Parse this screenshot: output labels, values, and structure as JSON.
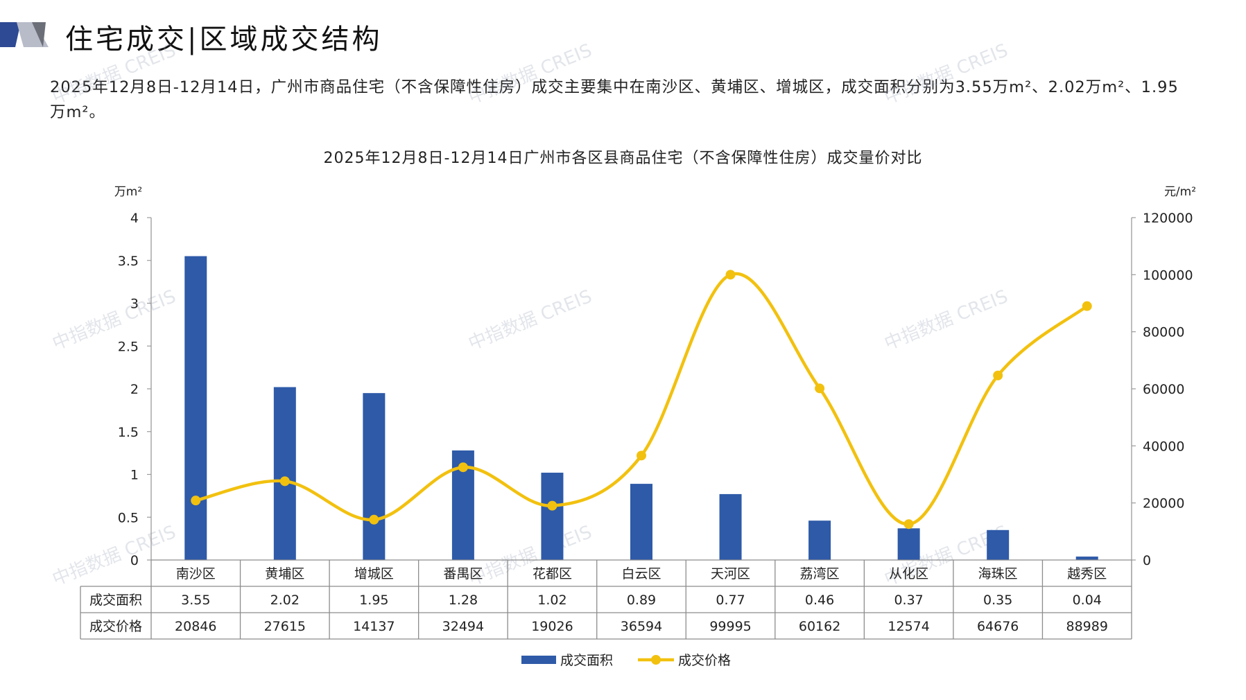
{
  "page": {
    "title": "住宅成交|区域成交结构",
    "summary": "2025年12月8日-12月14日，广州市商品住宅（不含保障性住房）成交主要集中在南沙区、黄埔区、增城区，成交面积分别为3.55万m²、2.02万m²、1.95万m²。",
    "watermark": "中指数据 CREIS"
  },
  "chart_data": {
    "type": "bar",
    "title": "2025年12月8日-12月14日广州市各区县商品住宅（不含保障性住房）成交量价对比",
    "y_left_unit": "万m²",
    "y_right_unit": "元/m²",
    "y_left_lim": [
      0,
      4
    ],
    "y_left_ticks": [
      "0",
      "0.5",
      "1",
      "1.5",
      "2",
      "2.5",
      "3",
      "3.5",
      "4"
    ],
    "y_right_lim": [
      0,
      120000
    ],
    "y_right_ticks": [
      "0",
      "20000",
      "40000",
      "60000",
      "80000",
      "100000",
      "120000"
    ],
    "categories": [
      "南沙区",
      "黄埔区",
      "增城区",
      "番禺区",
      "花都区",
      "白云区",
      "天河区",
      "荔湾区",
      "从化区",
      "海珠区",
      "越秀区"
    ],
    "series": [
      {
        "name": "成交面积",
        "type": "bar",
        "axis": "left",
        "color": "#2e5aa8",
        "values": [
          3.55,
          2.02,
          1.95,
          1.28,
          1.02,
          0.89,
          0.77,
          0.46,
          0.37,
          0.35,
          0.04
        ],
        "labels": [
          "3.55",
          "2.02",
          "1.95",
          "1.28",
          "1.02",
          "0.89",
          "0.77",
          "0.46",
          "0.37",
          "0.35",
          "0.04"
        ]
      },
      {
        "name": "成交价格",
        "type": "line",
        "axis": "right",
        "color": "#f2c10f",
        "values": [
          20846,
          27615,
          14137,
          32494,
          19026,
          36594,
          99995,
          60162,
          12574,
          64676,
          88989
        ],
        "labels": [
          "20846",
          "27615",
          "14137",
          "32494",
          "19026",
          "36594",
          "99995",
          "60162",
          "12574",
          "64676",
          "88989"
        ]
      }
    ],
    "grid": false,
    "legend": "bottom"
  }
}
